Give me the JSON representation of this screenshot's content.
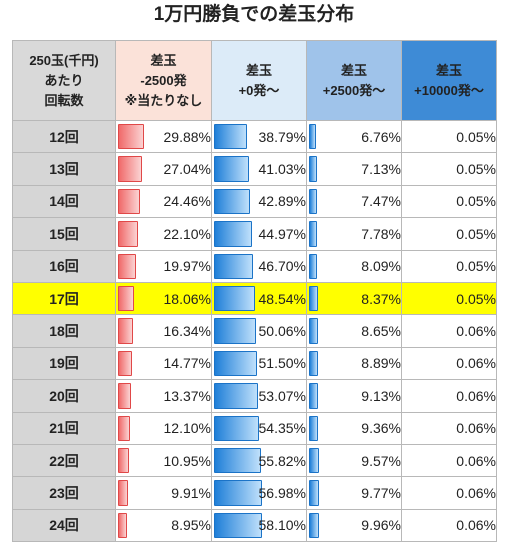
{
  "title": "1万円勝負での差玉分布",
  "headers": [
    [
      "250玉(千円)",
      "あたり",
      "回転数"
    ],
    [
      "差玉",
      "-2500発",
      "※当たりなし"
    ],
    [
      "差玉",
      "+0発～"
    ],
    [
      "差玉",
      "+2500発～"
    ],
    [
      "差玉",
      "+10000発～"
    ]
  ],
  "highlight_row": "17回",
  "rows": [
    {
      "label": "12回",
      "values": [
        "29.88%",
        "38.79%",
        "6.76%",
        "0.05%"
      ]
    },
    {
      "label": "13回",
      "values": [
        "27.04%",
        "41.03%",
        "7.13%",
        "0.05%"
      ]
    },
    {
      "label": "14回",
      "values": [
        "24.46%",
        "42.89%",
        "7.47%",
        "0.05%"
      ]
    },
    {
      "label": "15回",
      "values": [
        "22.10%",
        "44.97%",
        "7.78%",
        "0.05%"
      ]
    },
    {
      "label": "16回",
      "values": [
        "19.97%",
        "46.70%",
        "8.09%",
        "0.05%"
      ]
    },
    {
      "label": "17回",
      "values": [
        "18.06%",
        "48.54%",
        "8.37%",
        "0.05%"
      ]
    },
    {
      "label": "18回",
      "values": [
        "16.34%",
        "50.06%",
        "8.65%",
        "0.06%"
      ]
    },
    {
      "label": "19回",
      "values": [
        "14.77%",
        "51.50%",
        "8.89%",
        "0.06%"
      ]
    },
    {
      "label": "20回",
      "values": [
        "13.37%",
        "53.07%",
        "9.13%",
        "0.06%"
      ]
    },
    {
      "label": "21回",
      "values": [
        "12.10%",
        "54.35%",
        "9.36%",
        "0.06%"
      ]
    },
    {
      "label": "22回",
      "values": [
        "10.95%",
        "55.82%",
        "9.57%",
        "0.06%"
      ]
    },
    {
      "label": "23回",
      "values": [
        "9.91%",
        "56.98%",
        "9.77%",
        "0.06%"
      ]
    },
    {
      "label": "24回",
      "values": [
        "8.95%",
        "58.10%",
        "9.96%",
        "0.06%"
      ]
    }
  ],
  "colors": {
    "highlight": "#ffff00",
    "loss_bar": "#f06a6a",
    "win_bar": "#1f7fd8",
    "header_loss": "#fbe2d9",
    "header_win_1": "#dcebf8",
    "header_win_2": "#9fc3ea",
    "header_win_3": "#3e8bd6"
  }
}
